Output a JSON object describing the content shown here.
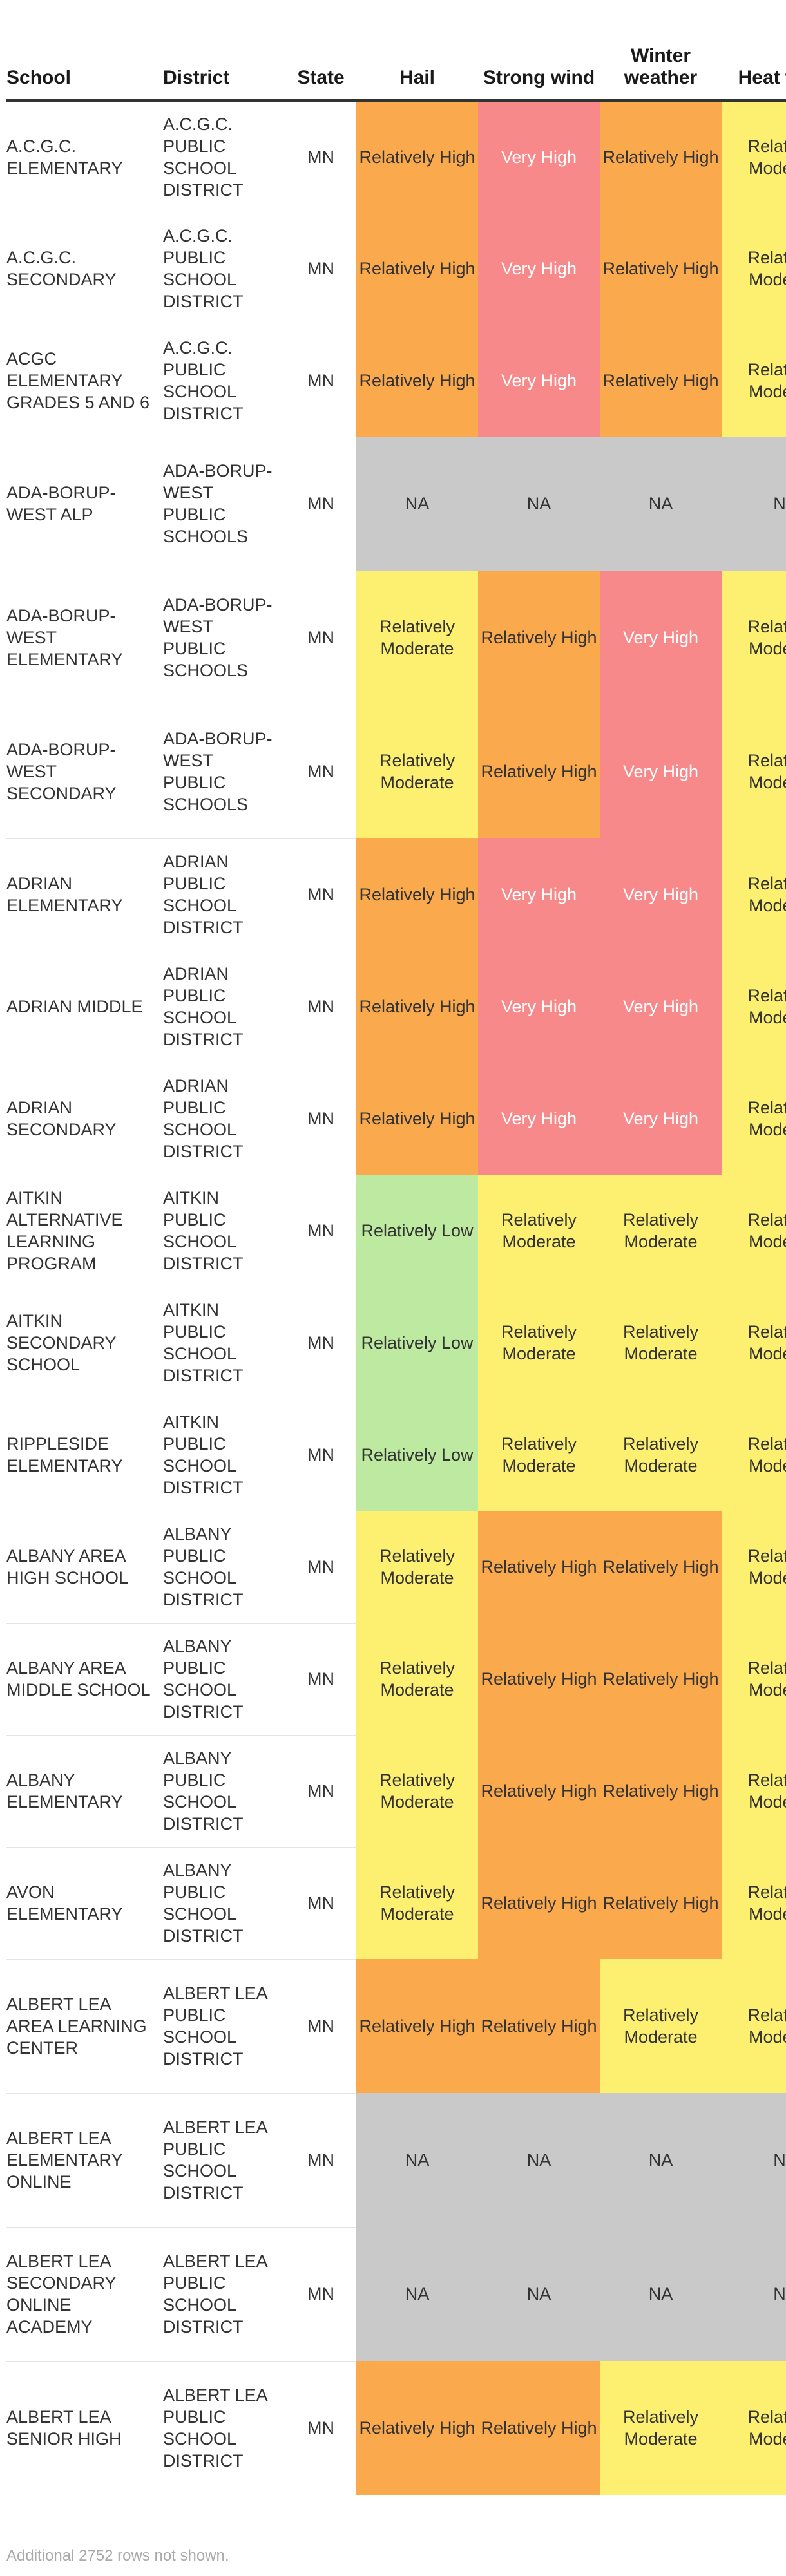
{
  "table": {
    "columns": [
      "School",
      "District",
      "State",
      "Hail",
      "Strong wind",
      "Winter weather",
      "Heat wave"
    ],
    "rows": [
      {
        "school": "A.C.G.C. ELEMENTARY",
        "district": "A.C.G.C. PUBLIC SCHOOL DISTRICT",
        "state": "MN",
        "hail": "Relatively High",
        "wind": "Very High",
        "winter": "Relatively High",
        "heat": "Relatively Moderate"
      },
      {
        "school": "A.C.G.C. SECONDARY",
        "district": "A.C.G.C. PUBLIC SCHOOL DISTRICT",
        "state": "MN",
        "hail": "Relatively High",
        "wind": "Very High",
        "winter": "Relatively High",
        "heat": "Relatively Moderate"
      },
      {
        "school": "ACGC ELEMENTARY GRADES 5 AND 6",
        "district": "A.C.G.C. PUBLIC SCHOOL DISTRICT",
        "state": "MN",
        "hail": "Relatively High",
        "wind": "Very High",
        "winter": "Relatively High",
        "heat": "Relatively Moderate"
      },
      {
        "school": "ADA-BORUP-WEST ALP",
        "district": "ADA-BORUP-WEST PUBLIC SCHOOLS",
        "state": "MN",
        "hail": "NA",
        "wind": "NA",
        "winter": "NA",
        "heat": "NA"
      },
      {
        "school": "ADA-BORUP-WEST ELEMENTARY",
        "district": "ADA-BORUP-WEST PUBLIC SCHOOLS",
        "state": "MN",
        "hail": "Relatively Moderate",
        "wind": "Relatively High",
        "winter": "Very High",
        "heat": "Relatively Moderate"
      },
      {
        "school": "ADA-BORUP-WEST SECONDARY",
        "district": "ADA-BORUP-WEST PUBLIC SCHOOLS",
        "state": "MN",
        "hail": "Relatively Moderate",
        "wind": "Relatively High",
        "winter": "Very High",
        "heat": "Relatively Moderate"
      },
      {
        "school": "ADRIAN ELEMENTARY",
        "district": "ADRIAN PUBLIC SCHOOL DISTRICT",
        "state": "MN",
        "hail": "Relatively High",
        "wind": "Very High",
        "winter": "Very High",
        "heat": "Relatively Moderate"
      },
      {
        "school": "ADRIAN MIDDLE",
        "district": "ADRIAN PUBLIC SCHOOL DISTRICT",
        "state": "MN",
        "hail": "Relatively High",
        "wind": "Very High",
        "winter": "Very High",
        "heat": "Relatively Moderate"
      },
      {
        "school": "ADRIAN SECONDARY",
        "district": "ADRIAN PUBLIC SCHOOL DISTRICT",
        "state": "MN",
        "hail": "Relatively High",
        "wind": "Very High",
        "winter": "Very High",
        "heat": "Relatively Moderate"
      },
      {
        "school": "AITKIN ALTERNATIVE LEARNING PROGRAM",
        "district": "AITKIN PUBLIC SCHOOL DISTRICT",
        "state": "MN",
        "hail": "Relatively Low",
        "wind": "Relatively Moderate",
        "winter": "Relatively Moderate",
        "heat": "Relatively Moderate"
      },
      {
        "school": "AITKIN SECONDARY SCHOOL",
        "district": "AITKIN PUBLIC SCHOOL DISTRICT",
        "state": "MN",
        "hail": "Relatively Low",
        "wind": "Relatively Moderate",
        "winter": "Relatively Moderate",
        "heat": "Relatively Moderate"
      },
      {
        "school": "RIPPLESIDE ELEMENTARY",
        "district": "AITKIN PUBLIC SCHOOL DISTRICT",
        "state": "MN",
        "hail": "Relatively Low",
        "wind": "Relatively Moderate",
        "winter": "Relatively Moderate",
        "heat": "Relatively Moderate"
      },
      {
        "school": "ALBANY AREA HIGH SCHOOL",
        "district": "ALBANY PUBLIC SCHOOL DISTRICT",
        "state": "MN",
        "hail": "Relatively Moderate",
        "wind": "Relatively High",
        "winter": "Relatively High",
        "heat": "Relatively Moderate"
      },
      {
        "school": "ALBANY AREA MIDDLE SCHOOL",
        "district": "ALBANY PUBLIC SCHOOL DISTRICT",
        "state": "MN",
        "hail": "Relatively Moderate",
        "wind": "Relatively High",
        "winter": "Relatively High",
        "heat": "Relatively Moderate"
      },
      {
        "school": "ALBANY ELEMENTARY",
        "district": "ALBANY PUBLIC SCHOOL DISTRICT",
        "state": "MN",
        "hail": "Relatively Moderate",
        "wind": "Relatively High",
        "winter": "Relatively High",
        "heat": "Relatively Moderate"
      },
      {
        "school": "AVON ELEMENTARY",
        "district": "ALBANY PUBLIC SCHOOL DISTRICT",
        "state": "MN",
        "hail": "Relatively Moderate",
        "wind": "Relatively High",
        "winter": "Relatively High",
        "heat": "Relatively Moderate"
      },
      {
        "school": "ALBERT LEA AREA LEARNING CENTER",
        "district": "ALBERT LEA PUBLIC SCHOOL DISTRICT",
        "state": "MN",
        "hail": "Relatively High",
        "wind": "Relatively High",
        "winter": "Relatively Moderate",
        "heat": "Relatively Moderate"
      },
      {
        "school": "ALBERT LEA ELEMENTARY ONLINE",
        "district": "ALBERT LEA PUBLIC SCHOOL DISTRICT",
        "state": "MN",
        "hail": "NA",
        "wind": "NA",
        "winter": "NA",
        "heat": "NA"
      },
      {
        "school": "ALBERT LEA SECONDARY ONLINE ACADEMY",
        "district": "ALBERT LEA PUBLIC SCHOOL DISTRICT",
        "state": "MN",
        "hail": "NA",
        "wind": "NA",
        "winter": "NA",
        "heat": "NA"
      },
      {
        "school": "ALBERT LEA SENIOR HIGH",
        "district": "ALBERT LEA PUBLIC SCHOOL DISTRICT",
        "state": "MN",
        "hail": "Relatively High",
        "wind": "Relatively High",
        "winter": "Relatively Moderate",
        "heat": "Relatively Moderate"
      }
    ]
  },
  "risk_colors": {
    "Very High": "#f7898b",
    "Relatively High": "#fba94d",
    "Relatively Moderate": "#fdf070",
    "Relatively Low": "#bde9a0",
    "NA": "#c9c9c9"
  },
  "white_text_levels": [
    "Very High"
  ],
  "footnote": "Additional 2752 rows not shown."
}
